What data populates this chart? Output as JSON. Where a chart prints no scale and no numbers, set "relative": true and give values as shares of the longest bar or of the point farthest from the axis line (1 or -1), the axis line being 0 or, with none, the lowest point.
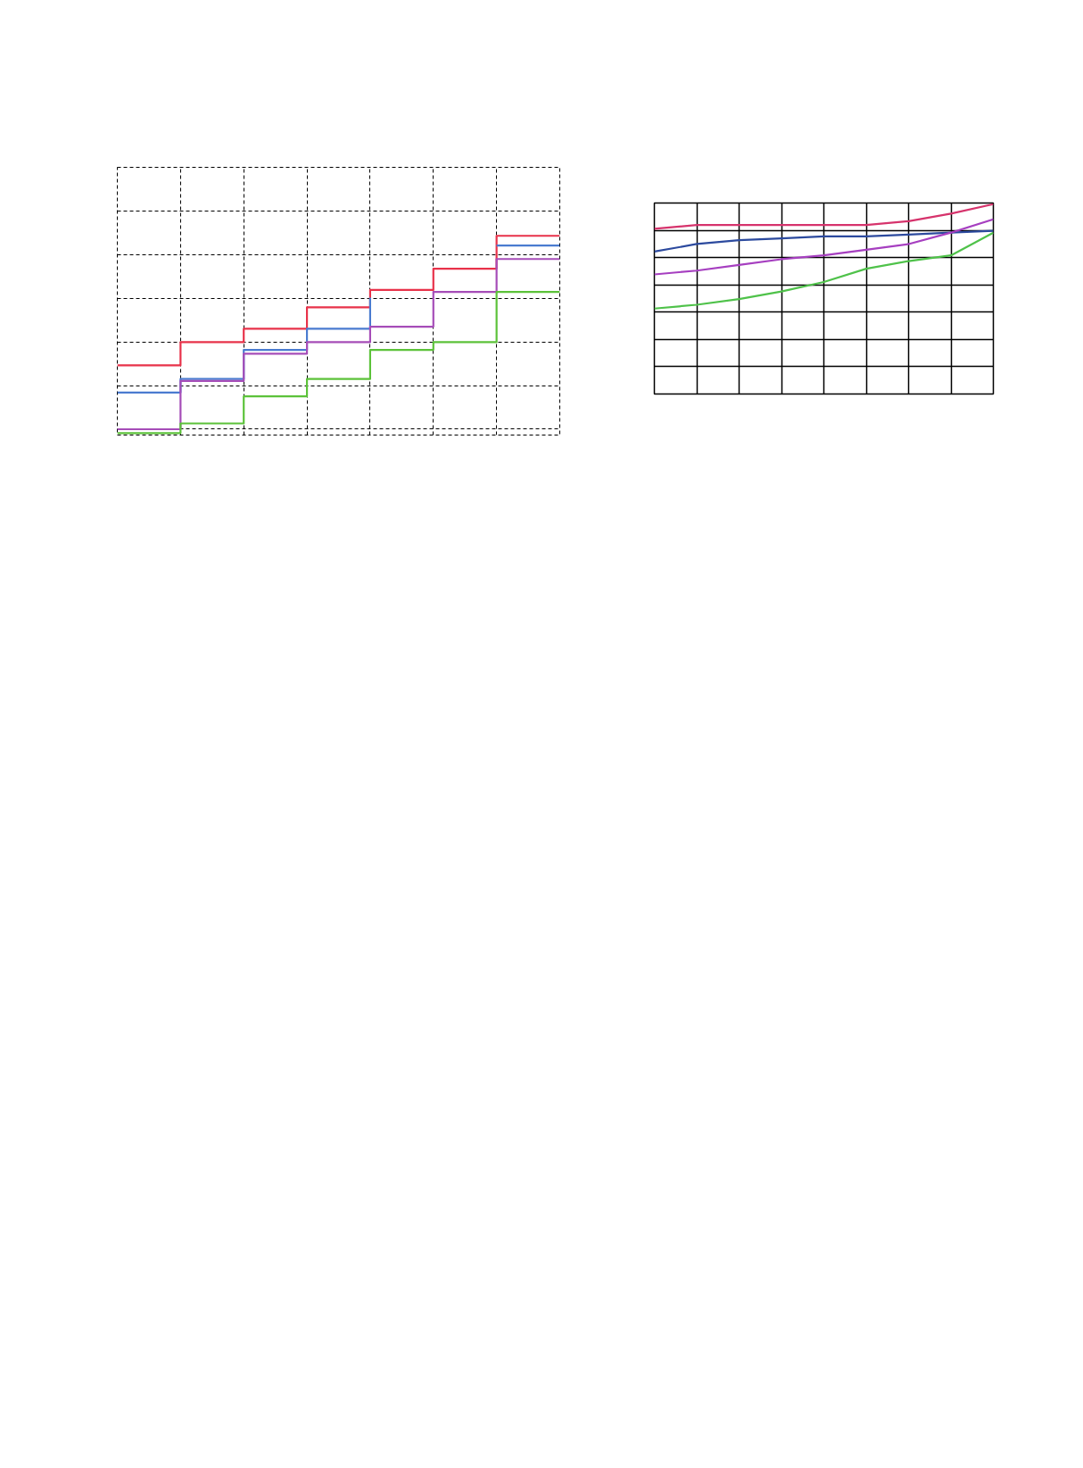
{
  "chart_data": [
    {
      "type": "step",
      "relative": true,
      "grid": true,
      "categories": [
        null,
        null,
        null,
        null,
        null,
        null,
        null,
        null
      ],
      "series": [
        {
          "color": "#e8324a",
          "values": [
            0.33,
            0.45,
            0.52,
            0.63,
            0.72,
            0.83,
            1.0,
            1.0
          ]
        },
        {
          "color": "#4a7bd0",
          "values": [
            0.19,
            0.26,
            0.41,
            0.52,
            0.68,
            null,
            0.95,
            0.95
          ]
        },
        {
          "color": "#a64db8",
          "values": [
            0.0,
            0.25,
            0.39,
            0.45,
            0.53,
            0.71,
            0.88,
            0.88
          ]
        },
        {
          "color": "#5cc23a",
          "values": [
            -0.02,
            0.03,
            0.17,
            0.26,
            0.41,
            0.45,
            0.71,
            0.71
          ]
        }
      ]
    },
    {
      "type": "line",
      "relative": true,
      "grid": true,
      "categories": [
        null,
        null,
        null,
        null,
        null,
        null,
        null,
        null,
        null
      ],
      "series": [
        {
          "color": "#d6336c",
          "values": [
            0.87,
            0.89,
            0.89,
            0.89,
            0.89,
            0.89,
            0.91,
            0.95,
            1.0
          ]
        },
        {
          "color": "#2c4a9e",
          "values": [
            0.75,
            0.79,
            0.81,
            0.82,
            0.83,
            0.83,
            0.84,
            0.85,
            0.86
          ]
        },
        {
          "color": "#a63fc0",
          "values": [
            0.63,
            0.65,
            0.68,
            0.71,
            0.73,
            0.76,
            0.79,
            0.85,
            0.92
          ]
        },
        {
          "color": "#4fc24a",
          "values": [
            0.45,
            0.47,
            0.5,
            0.54,
            0.59,
            0.66,
            0.7,
            0.73,
            0.85
          ]
        }
      ]
    }
  ]
}
